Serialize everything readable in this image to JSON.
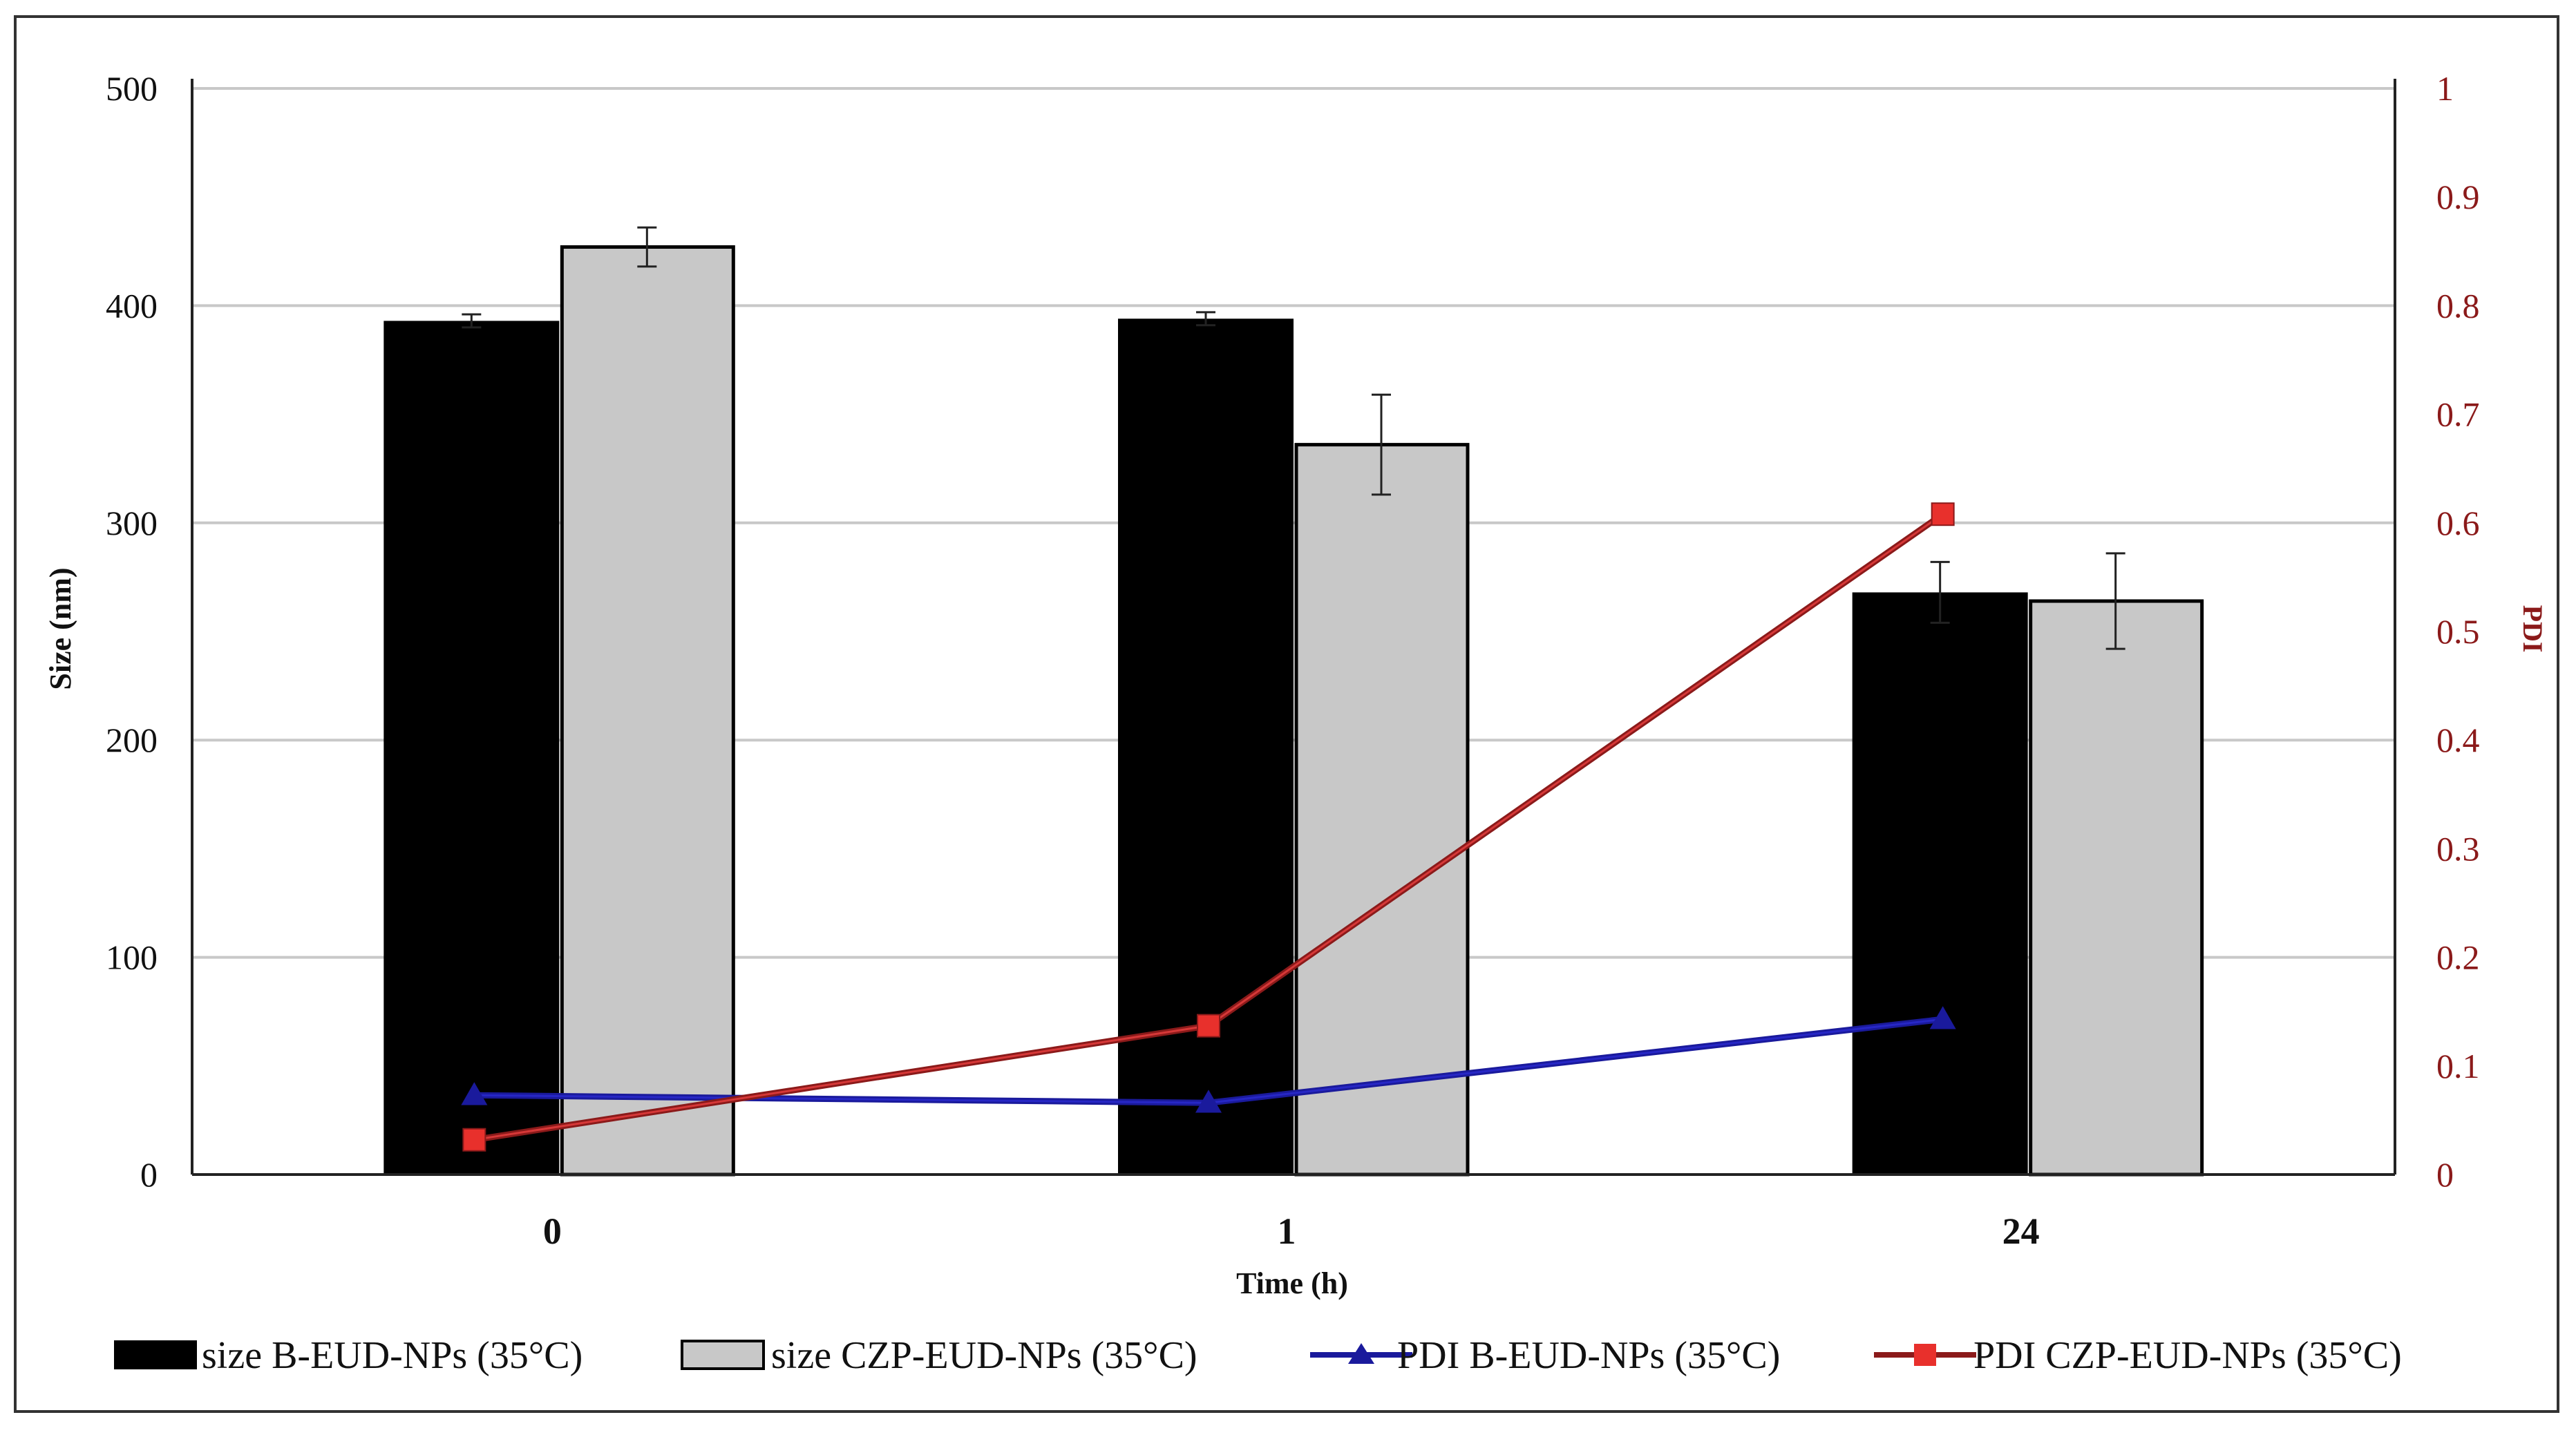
{
  "chart_data": {
    "type": "bar",
    "categories": [
      "0",
      "1",
      "24"
    ],
    "xlabel": "Time (h)",
    "ylabel": "Size (nm)",
    "y2label": "PDI",
    "ylim": [
      0,
      500
    ],
    "y2lim": [
      0,
      1
    ],
    "yticks": [
      "0",
      "100",
      "200",
      "300",
      "400",
      "500"
    ],
    "y2ticks": [
      "0",
      "0.1",
      "0.2",
      "0.3",
      "0.4",
      "0.5",
      "0.6",
      "0.7",
      "0.8",
      "0.9",
      "1"
    ],
    "grid": true,
    "legend_position": "bottom",
    "series": [
      {
        "name": "size B-EUD-NPs (35°C)",
        "kind": "bar",
        "axis": "left",
        "values": [
          393,
          394,
          268
        ],
        "errors": [
          3,
          3,
          14
        ],
        "color": "#000000"
      },
      {
        "name": "size CZP-EUD-NPs (35°C)",
        "kind": "bar",
        "axis": "left",
        "values": [
          427,
          336,
          264
        ],
        "errors": [
          9,
          23,
          22
        ],
        "color": "#c8c8c8"
      },
      {
        "name": "PDI B-EUD-NPs (35°C)",
        "kind": "line",
        "axis": "right",
        "marker": "triangle",
        "values": [
          0.073,
          0.066,
          0.143
        ],
        "color": "#1a1a9c"
      },
      {
        "name": "PDI CZP-EUD-NPs (35°C)",
        "kind": "line",
        "axis": "right",
        "marker": "square",
        "values": [
          0.032,
          0.137,
          0.608
        ],
        "color": "#8b1a1a"
      }
    ]
  }
}
